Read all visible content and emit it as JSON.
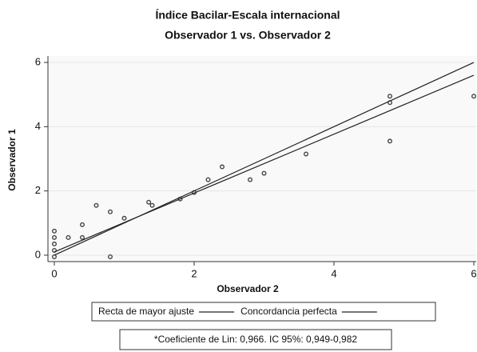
{
  "chart_data": {
    "type": "scatter",
    "title": "Índice Bacilar-Escala internacional",
    "subtitle": "Observador 1 vs. Observador 2",
    "x_label": "Observador 2",
    "y_label": "Observador 1",
    "xlim": [
      0,
      6
    ],
    "ylim": [
      -0.2,
      6.2
    ],
    "xticks": [
      0,
      2,
      4,
      6
    ],
    "yticks": [
      0,
      2,
      4,
      6
    ],
    "grid": true,
    "series": [
      {
        "type": "scatter",
        "color": "#444444",
        "x": [
          0,
          0,
          0,
          0,
          0,
          0.2,
          0.4,
          0.4,
          0.6,
          0.8,
          0.8,
          1.0,
          1.35,
          1.4,
          1.8,
          2.0,
          2.2,
          2.4,
          2.8,
          3.0,
          3.6,
          4.8,
          4.8,
          4.8,
          6.0
        ],
        "values": [
          0.75,
          0.55,
          0.35,
          0.15,
          -0.05,
          0.55,
          0.95,
          0.55,
          1.55,
          1.35,
          -0.05,
          1.15,
          1.65,
          1.55,
          1.75,
          1.95,
          2.35,
          2.75,
          2.35,
          2.55,
          3.15,
          4.95,
          4.75,
          3.55,
          4.95
        ]
      },
      {
        "type": "line",
        "name": "Recta de mayor ajuste",
        "color": "#222222",
        "x": [
          0,
          6
        ],
        "values": [
          0.1,
          5.6
        ]
      },
      {
        "type": "line",
        "name": "Concordancia perfecta",
        "color": "#222222",
        "x": [
          0,
          6
        ],
        "values": [
          0,
          6
        ]
      }
    ],
    "annotation": "*Coeficiente de Lin: 0,966. IC 95%: 0,949-0,982"
  }
}
